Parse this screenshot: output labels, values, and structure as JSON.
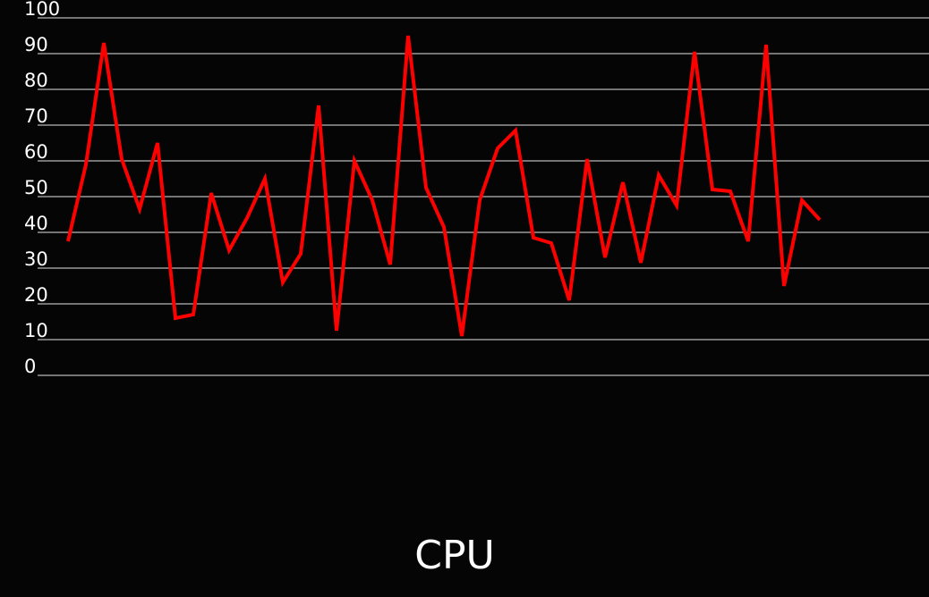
{
  "chart_data": {
    "type": "line",
    "title": "CPU",
    "series": [
      {
        "name": null,
        "color": "#ff0000",
        "values": [
          37.5,
          59,
          93,
          60.5,
          46.5,
          65,
          16,
          17,
          51,
          35,
          44,
          55,
          26,
          34,
          75.5,
          12.5,
          60,
          49,
          31,
          95,
          52.5,
          41.5,
          11,
          49,
          63.5,
          68.5,
          38.5,
          37,
          21,
          60.5,
          33,
          54,
          31.5,
          56,
          47.5,
          90.5,
          52,
          51.5,
          37.5,
          92.5,
          25,
          49,
          43.5
        ]
      }
    ],
    "ylim": [
      0,
      100
    ],
    "yticks": [
      0,
      10,
      20,
      30,
      40,
      50,
      60,
      70,
      80,
      90,
      100
    ],
    "grid": true
  }
}
